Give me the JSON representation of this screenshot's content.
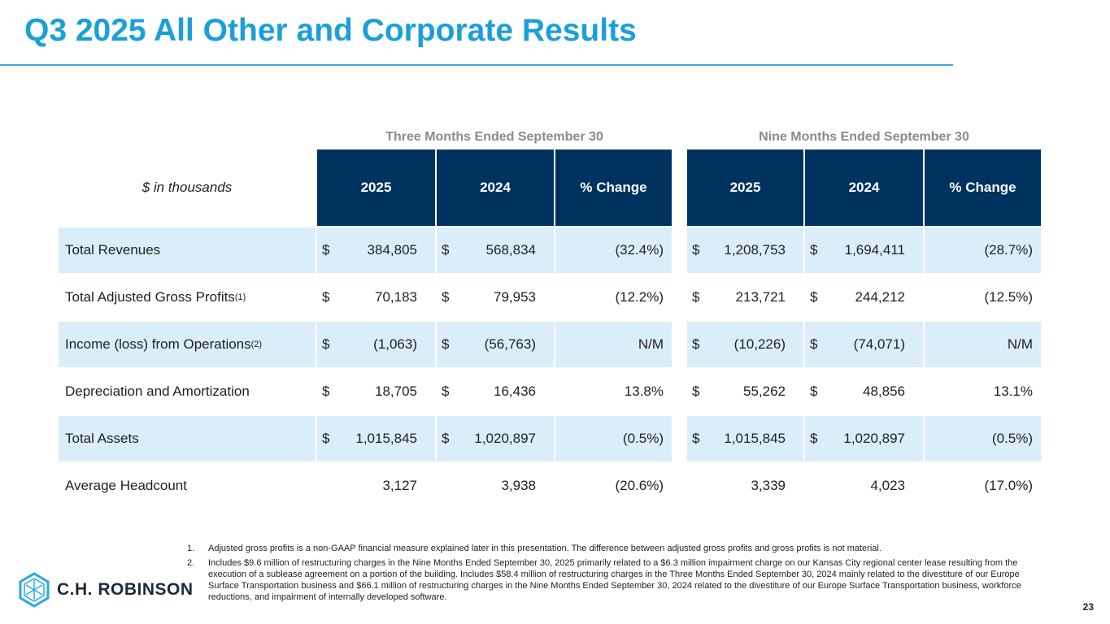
{
  "title": "Q3 2025 All Other and Corporate Results",
  "periods": {
    "three": "Three Months Ended September 30",
    "nine": "Nine Months Ended September 30"
  },
  "unit_label": "$ in thousands",
  "headers": [
    "2025",
    "2024",
    "% Change",
    "2025",
    "2024",
    "% Change"
  ],
  "rows": [
    {
      "label": "Total Revenues",
      "sup": "",
      "dollar": true,
      "values": [
        "384,805",
        "568,834",
        "(32.4%)",
        "1,208,753",
        "1,694,411",
        "(28.7%)"
      ]
    },
    {
      "label": "Total Adjusted Gross Profits",
      "sup": "(1)",
      "dollar": true,
      "values": [
        "70,183",
        "79,953",
        "(12.2%)",
        "213,721",
        "244,212",
        "(12.5%)"
      ]
    },
    {
      "label": "Income (loss) from Operations",
      "sup": "(2)",
      "dollar": true,
      "values": [
        "(1,063)",
        "(56,763)",
        "N/M",
        "(10,226)",
        "(74,071)",
        "N/M"
      ]
    },
    {
      "label": "Depreciation and Amortization",
      "sup": "",
      "dollar": true,
      "values": [
        "18,705",
        "16,436",
        "13.8%",
        "55,262",
        "48,856",
        "13.1%"
      ]
    },
    {
      "label": "Total Assets",
      "sup": "",
      "dollar": true,
      "values": [
        "1,015,845",
        "1,020,897",
        "(0.5%)",
        "1,015,845",
        "1,020,897",
        "(0.5%)"
      ]
    },
    {
      "label": "Average Headcount",
      "sup": "",
      "dollar": false,
      "values": [
        "3,127",
        "3,938",
        "(20.6%)",
        "3,339",
        "4,023",
        "(17.0%)"
      ]
    }
  ],
  "currency_symbol": "$",
  "footnotes": [
    {
      "num": "1.",
      "text": "Adjusted gross profits is a non-GAAP financial measure explained later in this presentation. The difference between adjusted gross profits and gross profits is not material."
    },
    {
      "num": "2.",
      "text": "Includes $9.6 million of restructuring charges in the Nine Months Ended September 30, 2025 primarily related to a $6.3 million impairment charge on our Kansas City regional center lease resulting from the execution of a sublease agreement on a portion of the building. Includes $58.4 million of restructuring charges in the Three Months Ended September 30, 2024 mainly related to the divestiture of our Europe Surface Transportation business and $66.1 million of restructuring charges in the Nine Months Ended September 30, 2024 related to the divestiture of our Europe Surface Transportation business, workforce reductions, and impairment of internally developed software."
    }
  ],
  "logo_text": "C.H. ROBINSON",
  "page_number": "23",
  "colors": {
    "title": "#1b9fd9",
    "header": "#00325f",
    "shade": "#d9eef8"
  }
}
